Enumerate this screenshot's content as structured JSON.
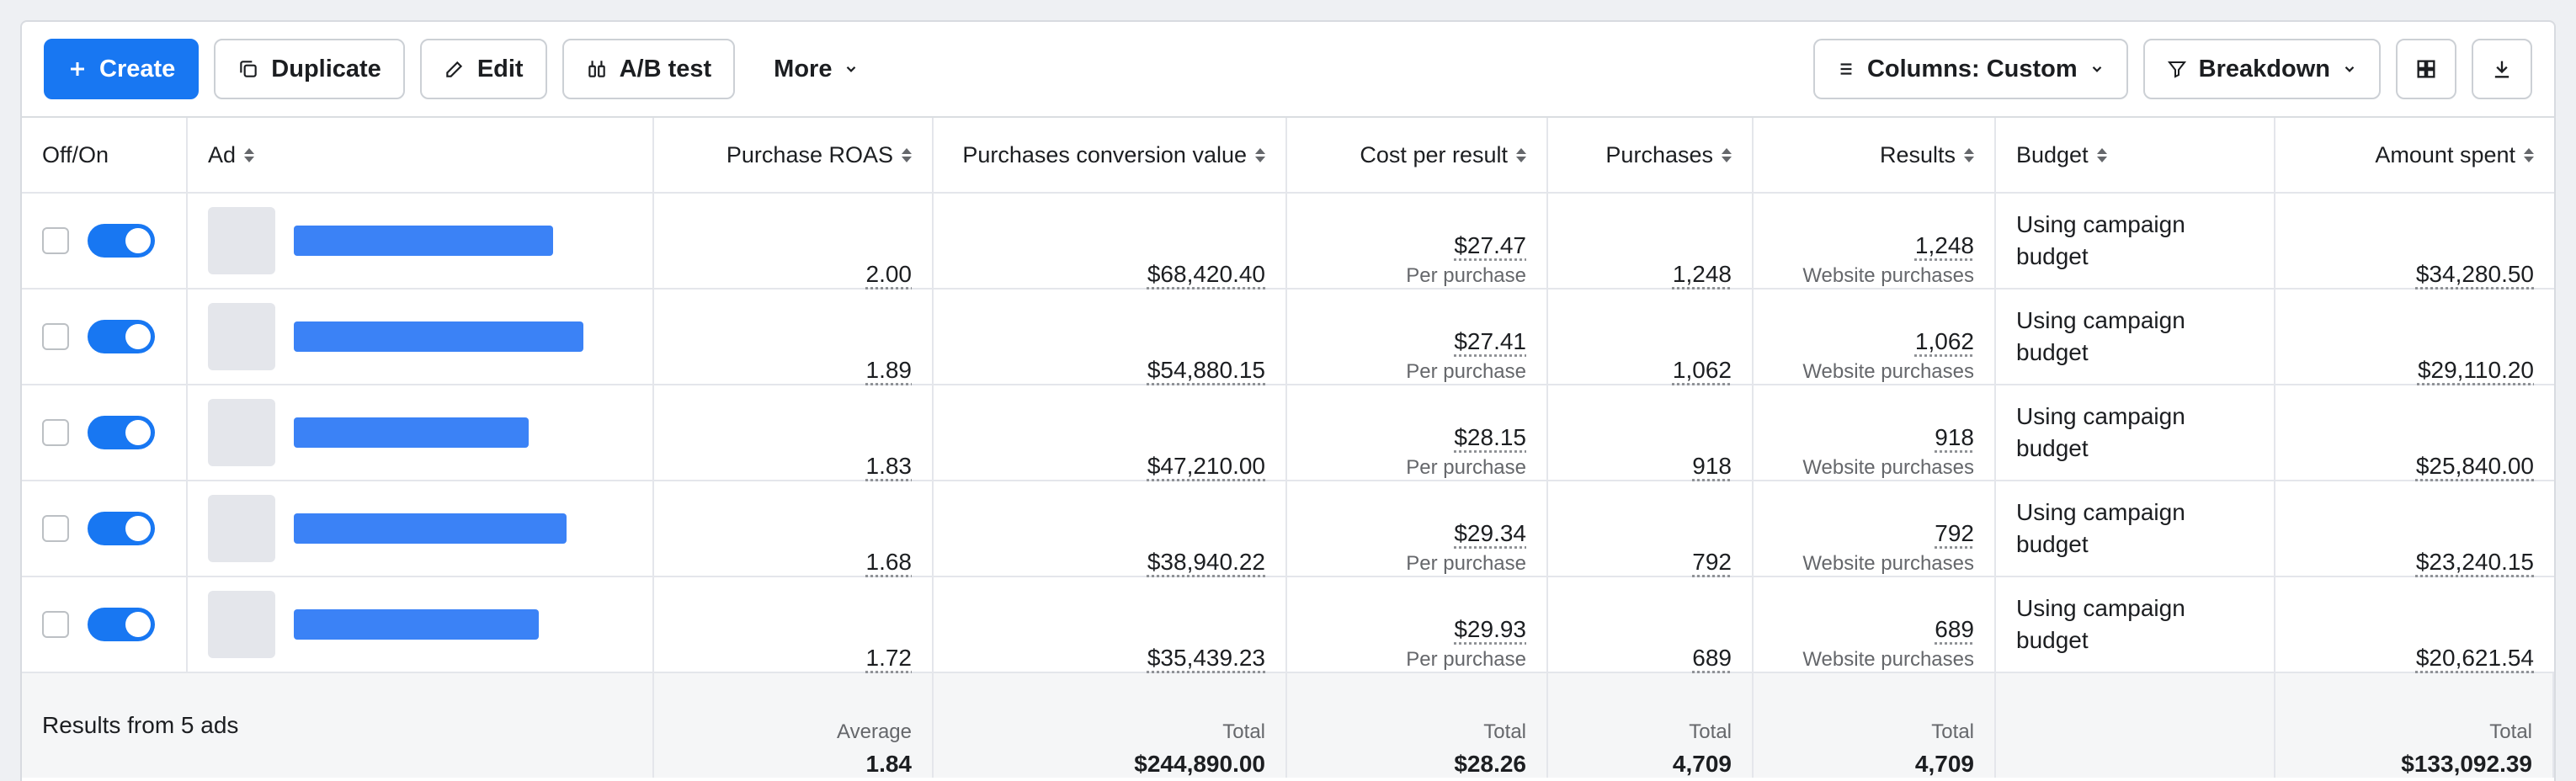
{
  "toolbar": {
    "create": "Create",
    "duplicate": "Duplicate",
    "edit": "Edit",
    "ab_test": "A/B test",
    "more": "More",
    "columns": "Columns: Custom",
    "breakdown": "Breakdown"
  },
  "headers": {
    "offon": "Off/On",
    "ad": "Ad",
    "roas": "Purchase ROAS",
    "conv_value": "Purchases conversion value",
    "cpr": "Cost per result",
    "purchases": "Purchases",
    "results": "Results",
    "budget": "Budget",
    "spent": "Amount spent"
  },
  "rows": [
    {
      "roas": "2.00",
      "conv_value": "$68,420.40",
      "cpr": "$27.47",
      "cpr_sub": "Per purchase",
      "purchases": "1,248",
      "results": "1,248",
      "results_sub": "Website purchases",
      "budget_1": "Using campaign",
      "budget_2": "budget",
      "spent": "$34,280.50",
      "ad_name_length": 0.75
    },
    {
      "roas": "1.89",
      "conv_value": "$54,880.15",
      "cpr": "$27.41",
      "cpr_sub": "Per purchase",
      "purchases": "1,062",
      "results": "1,062",
      "results_sub": "Website purchases",
      "budget_1": "Using campaign",
      "budget_2": "budget",
      "spent": "$29,110.20",
      "ad_name_length": 0.84
    },
    {
      "roas": "1.83",
      "conv_value": "$47,210.00",
      "cpr": "$28.15",
      "cpr_sub": "Per purchase",
      "purchases": "918",
      "results": "918",
      "results_sub": "Website purchases",
      "budget_1": "Using campaign",
      "budget_2": "budget",
      "spent": "$25,840.00",
      "ad_name_length": 0.68
    },
    {
      "roas": "1.68",
      "conv_value": "$38,940.22",
      "cpr": "$29.34",
      "cpr_sub": "Per purchase",
      "purchases": "792",
      "results": "792",
      "results_sub": "Website purchases",
      "budget_1": "Using campaign",
      "budget_2": "budget",
      "spent": "$23,240.15",
      "ad_name_length": 0.79
    },
    {
      "roas": "1.72",
      "conv_value": "$35,439.23",
      "cpr": "$29.93",
      "cpr_sub": "Per purchase",
      "purchases": "689",
      "results": "689",
      "results_sub": "Website purchases",
      "budget_1": "Using campaign",
      "budget_2": "budget",
      "spent": "$20,621.54",
      "ad_name_length": 0.71
    }
  ],
  "footer": {
    "label": "Results from 5 ads",
    "roas_label": "Average",
    "roas": "1.84",
    "conv_label": "Total",
    "conv": "$244,890.00",
    "cpr_label": "Total",
    "cpr": "$28.26",
    "purchases_label": "Total",
    "purchases": "4,709",
    "results_label": "Total",
    "results": "4,709",
    "spent_label": "Total",
    "spent": "$133,092.39"
  },
  "colors": {
    "accent": "#1877f2",
    "ad_bar": "#3b82f6"
  },
  "icons": [
    "plus-icon",
    "duplicate-icon",
    "pencil-icon",
    "ab-test-icon",
    "chevron-down-icon",
    "columns-icon",
    "filter-icon",
    "grid-view-icon",
    "download-icon"
  ]
}
